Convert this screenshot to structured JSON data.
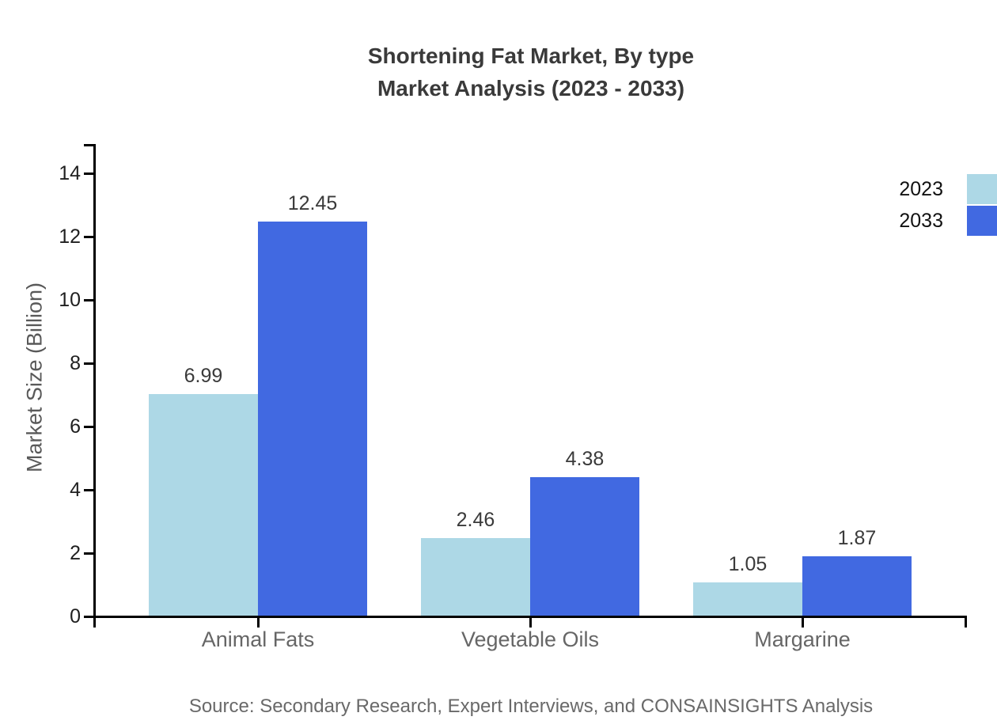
{
  "title": {
    "line1": "Shortening Fat Market, By type",
    "line2": "Market Analysis (2023 - 2033)"
  },
  "source": "Source: Secondary Research, Expert Interviews, and CONSAINSIGHTS Analysis",
  "chart_data": {
    "type": "bar",
    "title": "Shortening Fat Market, By type Market Analysis (2023 - 2033)",
    "categories": [
      "Animal Fats",
      "Vegetable Oils",
      "Margarine"
    ],
    "series": [
      {
        "name": "2023",
        "color": "#ADD8E6",
        "values": [
          6.99,
          2.46,
          1.05
        ]
      },
      {
        "name": "2033",
        "color": "#4169E1",
        "values": [
          12.45,
          4.38,
          1.87
        ]
      }
    ],
    "xlabel": "",
    "ylabel": "Market Size (Billion)",
    "ylim": [
      0,
      15
    ],
    "yticks": [
      0,
      2,
      4,
      6,
      8,
      10,
      12,
      14
    ],
    "grid": false,
    "legend_position": "right",
    "value_labels": true,
    "axis_color": "#000000",
    "tick_label_color": "#1f1f1f",
    "category_label_color": "#666666",
    "value_label_color": "#3a3a3a",
    "title_color": "#3a3a3a",
    "source_color": "#696969"
  }
}
